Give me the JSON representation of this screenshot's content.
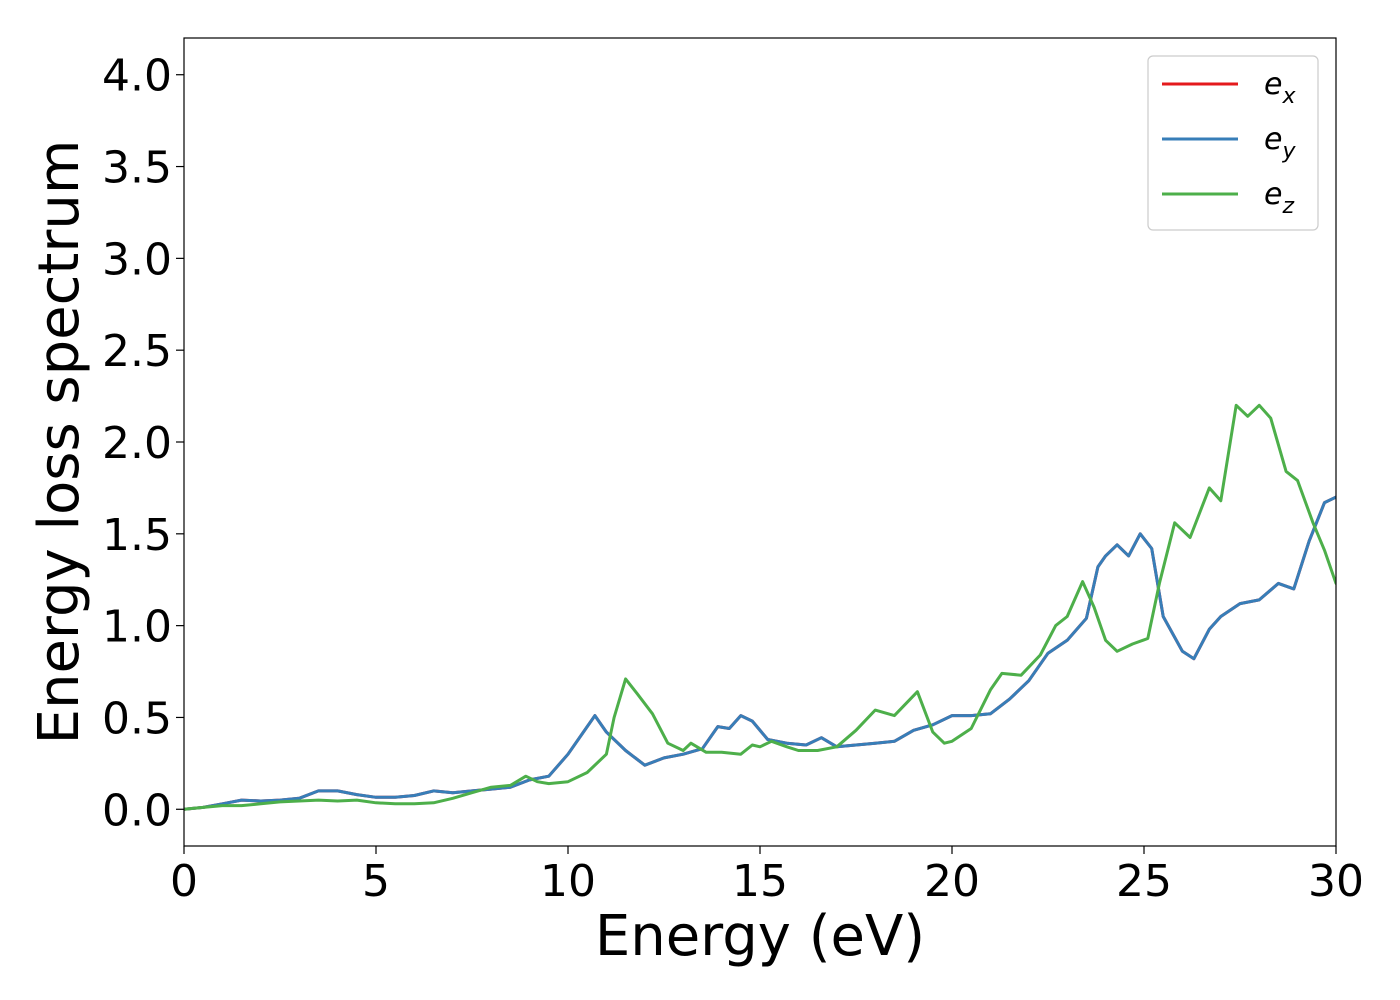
{
  "chart_data": {
    "type": "line",
    "title": "",
    "xlabel": "Energy (eV)",
    "ylabel": "Energy loss spectrum",
    "xlim": [
      0,
      30
    ],
    "ylim": [
      -0.2,
      4.2
    ],
    "xticks": [
      0,
      5,
      10,
      15,
      20,
      25,
      30
    ],
    "yticks": [
      0.0,
      0.5,
      1.0,
      1.5,
      2.0,
      2.5,
      3.0,
      3.5,
      4.0
    ],
    "xtick_labels": [
      "0",
      "5",
      "10",
      "15",
      "20",
      "25",
      "30"
    ],
    "ytick_labels": [
      "0.0",
      "0.5",
      "1.0",
      "1.5",
      "2.0",
      "2.5",
      "3.0",
      "3.5",
      "4.0"
    ],
    "grid": false,
    "legend_position": "top-right",
    "series": [
      {
        "name": "e_x",
        "legend_base": "e",
        "legend_sub": "x",
        "color": "#e41a1c",
        "points": [
          [
            0,
            0
          ],
          [
            0.5,
            0.01
          ],
          [
            1.0,
            0.03
          ],
          [
            1.5,
            0.05
          ],
          [
            2.0,
            0.045
          ],
          [
            2.5,
            0.05
          ],
          [
            3.0,
            0.06
          ],
          [
            3.5,
            0.1
          ],
          [
            4.0,
            0.1
          ],
          [
            4.5,
            0.08
          ],
          [
            5.0,
            0.065
          ],
          [
            5.5,
            0.065
          ],
          [
            6.0,
            0.075
          ],
          [
            6.5,
            0.1
          ],
          [
            7.0,
            0.09
          ],
          [
            7.5,
            0.1
          ],
          [
            8.0,
            0.11
          ],
          [
            8.5,
            0.12
          ],
          [
            9.0,
            0.16
          ],
          [
            9.5,
            0.18
          ],
          [
            10.0,
            0.3
          ],
          [
            10.5,
            0.45
          ],
          [
            10.7,
            0.51
          ],
          [
            11.0,
            0.42
          ],
          [
            11.5,
            0.32
          ],
          [
            12.0,
            0.24
          ],
          [
            12.5,
            0.28
          ],
          [
            13.0,
            0.3
          ],
          [
            13.5,
            0.33
          ],
          [
            13.9,
            0.45
          ],
          [
            14.2,
            0.44
          ],
          [
            14.5,
            0.51
          ],
          [
            14.8,
            0.48
          ],
          [
            15.2,
            0.38
          ],
          [
            15.7,
            0.36
          ],
          [
            16.2,
            0.35
          ],
          [
            16.6,
            0.39
          ],
          [
            17.0,
            0.34
          ],
          [
            17.5,
            0.35
          ],
          [
            18.0,
            0.36
          ],
          [
            18.5,
            0.37
          ],
          [
            19.0,
            0.43
          ],
          [
            19.5,
            0.46
          ],
          [
            20.0,
            0.51
          ],
          [
            20.5,
            0.51
          ],
          [
            21.0,
            0.52
          ],
          [
            21.5,
            0.6
          ],
          [
            22.0,
            0.7
          ],
          [
            22.5,
            0.85
          ],
          [
            23.0,
            0.92
          ],
          [
            23.5,
            1.04
          ],
          [
            23.8,
            1.32
          ],
          [
            24.0,
            1.38
          ],
          [
            24.3,
            1.44
          ],
          [
            24.6,
            1.38
          ],
          [
            24.9,
            1.5
          ],
          [
            25.2,
            1.42
          ],
          [
            25.5,
            1.05
          ],
          [
            26.0,
            0.86
          ],
          [
            26.3,
            0.82
          ],
          [
            26.7,
            0.98
          ],
          [
            27.0,
            1.05
          ],
          [
            27.5,
            1.12
          ],
          [
            28.0,
            1.14
          ],
          [
            28.5,
            1.23
          ],
          [
            28.9,
            1.2
          ],
          [
            29.3,
            1.46
          ],
          [
            29.7,
            1.67
          ],
          [
            30.0,
            1.7
          ]
        ]
      },
      {
        "name": "e_y",
        "legend_base": "e",
        "legend_sub": "y",
        "color": "#377eb8",
        "points": [
          [
            0,
            0
          ],
          [
            0.5,
            0.01
          ],
          [
            1.0,
            0.03
          ],
          [
            1.5,
            0.05
          ],
          [
            2.0,
            0.045
          ],
          [
            2.5,
            0.05
          ],
          [
            3.0,
            0.06
          ],
          [
            3.5,
            0.1
          ],
          [
            4.0,
            0.1
          ],
          [
            4.5,
            0.08
          ],
          [
            5.0,
            0.065
          ],
          [
            5.5,
            0.065
          ],
          [
            6.0,
            0.075
          ],
          [
            6.5,
            0.1
          ],
          [
            7.0,
            0.09
          ],
          [
            7.5,
            0.1
          ],
          [
            8.0,
            0.11
          ],
          [
            8.5,
            0.12
          ],
          [
            9.0,
            0.16
          ],
          [
            9.5,
            0.18
          ],
          [
            10.0,
            0.3
          ],
          [
            10.5,
            0.45
          ],
          [
            10.7,
            0.51
          ],
          [
            11.0,
            0.42
          ],
          [
            11.5,
            0.32
          ],
          [
            12.0,
            0.24
          ],
          [
            12.5,
            0.28
          ],
          [
            13.0,
            0.3
          ],
          [
            13.5,
            0.33
          ],
          [
            13.9,
            0.45
          ],
          [
            14.2,
            0.44
          ],
          [
            14.5,
            0.51
          ],
          [
            14.8,
            0.48
          ],
          [
            15.2,
            0.38
          ],
          [
            15.7,
            0.36
          ],
          [
            16.2,
            0.35
          ],
          [
            16.6,
            0.39
          ],
          [
            17.0,
            0.34
          ],
          [
            17.5,
            0.35
          ],
          [
            18.0,
            0.36
          ],
          [
            18.5,
            0.37
          ],
          [
            19.0,
            0.43
          ],
          [
            19.5,
            0.46
          ],
          [
            20.0,
            0.51
          ],
          [
            20.5,
            0.51
          ],
          [
            21.0,
            0.52
          ],
          [
            21.5,
            0.6
          ],
          [
            22.0,
            0.7
          ],
          [
            22.5,
            0.85
          ],
          [
            23.0,
            0.92
          ],
          [
            23.5,
            1.04
          ],
          [
            23.8,
            1.32
          ],
          [
            24.0,
            1.38
          ],
          [
            24.3,
            1.44
          ],
          [
            24.6,
            1.38
          ],
          [
            24.9,
            1.5
          ],
          [
            25.2,
            1.42
          ],
          [
            25.5,
            1.05
          ],
          [
            26.0,
            0.86
          ],
          [
            26.3,
            0.82
          ],
          [
            26.7,
            0.98
          ],
          [
            27.0,
            1.05
          ],
          [
            27.5,
            1.12
          ],
          [
            28.0,
            1.14
          ],
          [
            28.5,
            1.23
          ],
          [
            28.9,
            1.2
          ],
          [
            29.3,
            1.46
          ],
          [
            29.7,
            1.67
          ],
          [
            30.0,
            1.7
          ]
        ]
      },
      {
        "name": "e_z",
        "legend_base": "e",
        "legend_sub": "z",
        "color": "#4daf4a",
        "points": [
          [
            0,
            0
          ],
          [
            0.5,
            0.01
          ],
          [
            1.0,
            0.02
          ],
          [
            1.5,
            0.02
          ],
          [
            2.0,
            0.03
          ],
          [
            2.5,
            0.04
          ],
          [
            3.0,
            0.045
          ],
          [
            3.5,
            0.05
          ],
          [
            4.0,
            0.045
          ],
          [
            4.5,
            0.05
          ],
          [
            5.0,
            0.035
          ],
          [
            5.5,
            0.03
          ],
          [
            6.0,
            0.03
          ],
          [
            6.5,
            0.035
          ],
          [
            7.0,
            0.06
          ],
          [
            7.5,
            0.09
          ],
          [
            8.0,
            0.12
          ],
          [
            8.5,
            0.13
          ],
          [
            8.9,
            0.18
          ],
          [
            9.2,
            0.15
          ],
          [
            9.5,
            0.14
          ],
          [
            10.0,
            0.15
          ],
          [
            10.5,
            0.2
          ],
          [
            11.0,
            0.3
          ],
          [
            11.2,
            0.5
          ],
          [
            11.5,
            0.71
          ],
          [
            11.8,
            0.63
          ],
          [
            12.2,
            0.52
          ],
          [
            12.6,
            0.36
          ],
          [
            13.0,
            0.32
          ],
          [
            13.2,
            0.36
          ],
          [
            13.6,
            0.31
          ],
          [
            14.0,
            0.31
          ],
          [
            14.5,
            0.3
          ],
          [
            14.8,
            0.35
          ],
          [
            15.0,
            0.34
          ],
          [
            15.3,
            0.37
          ],
          [
            15.7,
            0.34
          ],
          [
            16.0,
            0.32
          ],
          [
            16.5,
            0.32
          ],
          [
            17.0,
            0.34
          ],
          [
            17.5,
            0.43
          ],
          [
            18.0,
            0.54
          ],
          [
            18.5,
            0.51
          ],
          [
            19.1,
            0.64
          ],
          [
            19.5,
            0.42
          ],
          [
            19.8,
            0.36
          ],
          [
            20.0,
            0.37
          ],
          [
            20.5,
            0.44
          ],
          [
            21.0,
            0.65
          ],
          [
            21.3,
            0.74
          ],
          [
            21.8,
            0.73
          ],
          [
            22.3,
            0.84
          ],
          [
            22.7,
            1.0
          ],
          [
            23.0,
            1.05
          ],
          [
            23.4,
            1.24
          ],
          [
            23.7,
            1.1
          ],
          [
            24.0,
            0.92
          ],
          [
            24.3,
            0.86
          ],
          [
            24.7,
            0.9
          ],
          [
            25.1,
            0.93
          ],
          [
            25.4,
            1.23
          ],
          [
            25.8,
            1.56
          ],
          [
            26.2,
            1.48
          ],
          [
            26.7,
            1.75
          ],
          [
            27.0,
            1.68
          ],
          [
            27.4,
            2.2
          ],
          [
            27.7,
            2.14
          ],
          [
            28.0,
            2.2
          ],
          [
            28.3,
            2.13
          ],
          [
            28.7,
            1.84
          ],
          [
            29.0,
            1.79
          ],
          [
            29.4,
            1.56
          ],
          [
            29.7,
            1.41
          ],
          [
            30.0,
            1.23
          ]
        ]
      }
    ]
  }
}
